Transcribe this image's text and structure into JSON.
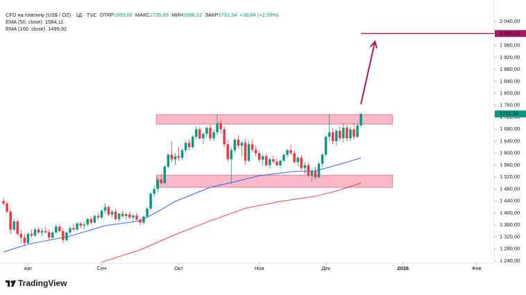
{
  "chart_data": {
    "type": "candlestick",
    "header": {
      "symbol": "CFD на платину (US$ / OZ) · 1Д · TVC",
      "open_label": "ОТКР",
      "open": "1693,00",
      "high_label": "МАКС",
      "high": "1735,89",
      "low_label": "МИН",
      "low": "1686,22",
      "close_label": "ЗАКР",
      "close": "1731,34",
      "change": "+38,84 (+2,29%)"
    },
    "open": [
      1440,
      1432,
      1405,
      1345,
      1372,
      1330,
      1318,
      1300,
      1330,
      1325,
      1345,
      1335,
      1340,
      1336,
      1318,
      1335,
      1355,
      1340,
      1310,
      1335,
      1350,
      1345,
      1365,
      1358,
      1362,
      1380,
      1368,
      1390,
      1385,
      1408,
      1420,
      1395,
      1405,
      1380,
      1398,
      1390,
      1396,
      1385,
      1392,
      1378,
      1368,
      1388,
      1415,
      1465,
      1480,
      1512,
      1500,
      1555,
      1595,
      1580,
      1590,
      1585,
      1610,
      1635,
      1620,
      1655,
      1680,
      1650,
      1665,
      1685,
      1650,
      1670,
      1700,
      1680,
      1630,
      1580,
      1610,
      1645,
      1625,
      1635,
      1575,
      1630,
      1612,
      1600,
      1578,
      1590,
      1560,
      1580,
      1572,
      1560,
      1575,
      1595,
      1610,
      1600,
      1570,
      1585,
      1550,
      1560,
      1525,
      1540,
      1520,
      1565,
      1595,
      1655,
      1670,
      1640,
      1675,
      1650,
      1685,
      1650,
      1680,
      1655,
      1693
    ],
    "high": [
      1450,
      1438,
      1415,
      1380,
      1378,
      1345,
      1330,
      1335,
      1345,
      1350,
      1352,
      1348,
      1355,
      1345,
      1340,
      1362,
      1360,
      1350,
      1340,
      1355,
      1365,
      1370,
      1372,
      1370,
      1385,
      1388,
      1395,
      1400,
      1412,
      1432,
      1425,
      1410,
      1415,
      1400,
      1408,
      1402,
      1405,
      1395,
      1400,
      1385,
      1392,
      1420,
      1470,
      1490,
      1520,
      1530,
      1560,
      1600,
      1640,
      1600,
      1620,
      1615,
      1640,
      1648,
      1660,
      1690,
      1688,
      1670,
      1690,
      1695,
      1680,
      1729,
      1712,
      1690,
      1645,
      1620,
      1650,
      1660,
      1640,
      1650,
      1640,
      1645,
      1625,
      1610,
      1595,
      1600,
      1585,
      1592,
      1585,
      1580,
      1600,
      1615,
      1630,
      1610,
      1590,
      1595,
      1570,
      1568,
      1545,
      1555,
      1570,
      1600,
      1660,
      1729,
      1685,
      1680,
      1690,
      1700,
      1695,
      1690,
      1700,
      1700,
      1735.89
    ],
    "low": [
      1425,
      1400,
      1330,
      1340,
      1325,
      1300,
      1289,
      1295,
      1318,
      1320,
      1330,
      1322,
      1332,
      1310,
      1312,
      1330,
      1335,
      1300,
      1305,
      1328,
      1340,
      1342,
      1350,
      1345,
      1355,
      1362,
      1365,
      1378,
      1380,
      1398,
      1390,
      1385,
      1375,
      1372,
      1385,
      1378,
      1380,
      1370,
      1372,
      1360,
      1362,
      1385,
      1410,
      1455,
      1470,
      1495,
      1498,
      1550,
      1570,
      1560,
      1575,
      1578,
      1600,
      1610,
      1615,
      1645,
      1645,
      1630,
      1655,
      1640,
      1640,
      1660,
      1665,
      1620,
      1570,
      1497,
      1600,
      1615,
      1590,
      1560,
      1570,
      1605,
      1590,
      1570,
      1560,
      1555,
      1548,
      1565,
      1555,
      1550,
      1570,
      1585,
      1595,
      1565,
      1555,
      1545,
      1530,
      1520,
      1505,
      1510,
      1515,
      1555,
      1590,
      1640,
      1630,
      1625,
      1640,
      1635,
      1640,
      1640,
      1645,
      1650,
      1686.22
    ],
    "close": [
      1432,
      1405,
      1345,
      1372,
      1330,
      1318,
      1300,
      1330,
      1325,
      1345,
      1335,
      1340,
      1336,
      1318,
      1335,
      1355,
      1340,
      1310,
      1335,
      1350,
      1345,
      1365,
      1358,
      1362,
      1380,
      1368,
      1390,
      1385,
      1408,
      1420,
      1395,
      1405,
      1380,
      1398,
      1390,
      1396,
      1385,
      1392,
      1378,
      1368,
      1388,
      1415,
      1465,
      1480,
      1512,
      1500,
      1555,
      1595,
      1580,
      1590,
      1585,
      1610,
      1635,
      1620,
      1655,
      1680,
      1650,
      1665,
      1685,
      1650,
      1670,
      1700,
      1680,
      1630,
      1580,
      1610,
      1645,
      1625,
      1635,
      1575,
      1630,
      1612,
      1600,
      1578,
      1590,
      1560,
      1580,
      1572,
      1560,
      1575,
      1595,
      1610,
      1600,
      1570,
      1585,
      1550,
      1560,
      1525,
      1540,
      1520,
      1565,
      1595,
      1655,
      1670,
      1640,
      1675,
      1650,
      1685,
      1650,
      1680,
      1655,
      1693,
      1731.34
    ],
    "up_color": "#089981",
    "down_color": "#f23645",
    "overlays": [
      {
        "name": "EMA (50, close)",
        "legend_value": "1584,11",
        "color": "#2962ff",
        "x": [
          0,
          7,
          19,
          29,
          39,
          44,
          49,
          59,
          65,
          73,
          83,
          89,
          95,
          102
        ],
        "values": [
          1270,
          1296,
          1323,
          1358,
          1374,
          1405,
          1439,
          1486,
          1502,
          1525,
          1539,
          1541,
          1560,
          1584.11
        ]
      },
      {
        "name": "EMA (100, close)",
        "legend_value": "1499,92",
        "color": "#e5434d",
        "x": [
          28,
          39,
          49,
          59,
          69,
          79,
          89,
          95,
          102
        ],
        "values": [
          1236,
          1277,
          1328,
          1374,
          1416,
          1439,
          1456,
          1474,
          1499.92
        ]
      }
    ],
    "zones": [
      {
        "x": [
          43.6,
          111
        ],
        "y": [
          1697,
          1729
        ]
      },
      {
        "x": [
          43.6,
          111
        ],
        "y": [
          1486,
          1527
        ]
      }
    ],
    "zone_color": "#f7a1b3",
    "target": {
      "value": 2000,
      "label": "2 000,00",
      "x": [
        102,
        140
      ],
      "color": "#a8175f"
    },
    "arrow": {
      "x": [
        102,
        106
      ],
      "y": [
        1764,
        1973
      ],
      "color": "#a8175f"
    },
    "last_price_label": "1731,34",
    "xlim": [
      -1,
      140
    ],
    "xticks": [
      {
        "value": 7,
        "label": "Авг"
      },
      {
        "value": 28,
        "label": "Сен"
      },
      {
        "value": 50,
        "label": "Окт"
      },
      {
        "value": 73,
        "label": "Ноя"
      },
      {
        "value": 92,
        "label": "Дек"
      },
      {
        "value": 114,
        "label": "2026"
      },
      {
        "value": 135,
        "label": "Фев"
      }
    ],
    "ylim": [
      1226,
      2112
    ],
    "yticks": [
      {
        "value": 1240,
        "label": "1 240,00"
      },
      {
        "value": 1280,
        "label": "1 280,00"
      },
      {
        "value": 1320,
        "label": "1 320,00"
      },
      {
        "value": 1360,
        "label": "1 360,00"
      },
      {
        "value": 1400,
        "label": "1 400,00"
      },
      {
        "value": 1440,
        "label": "1 440,00"
      },
      {
        "value": 1480,
        "label": "1 480,00"
      },
      {
        "value": 1520,
        "label": "1 520,00"
      },
      {
        "value": 1560,
        "label": "1 560,00"
      },
      {
        "value": 1600,
        "label": "1 600,00"
      },
      {
        "value": 1640,
        "label": "1 640,00"
      },
      {
        "value": 1680,
        "label": "1 680,00"
      },
      {
        "value": 1720,
        "label": "1 720,00"
      },
      {
        "value": 1760,
        "label": "1 760,00"
      },
      {
        "value": 1800,
        "label": "1 800,00"
      },
      {
        "value": 1840,
        "label": "1 840,00"
      },
      {
        "value": 1880,
        "label": "1 880,00"
      },
      {
        "value": 1920,
        "label": "1 920,00"
      },
      {
        "value": 1960,
        "label": "1 960,00"
      },
      {
        "value": 2000,
        "label": "2 000,00"
      },
      {
        "value": 2040,
        "label": "2 040,00"
      }
    ],
    "grid": false,
    "brand": "TradingView"
  }
}
